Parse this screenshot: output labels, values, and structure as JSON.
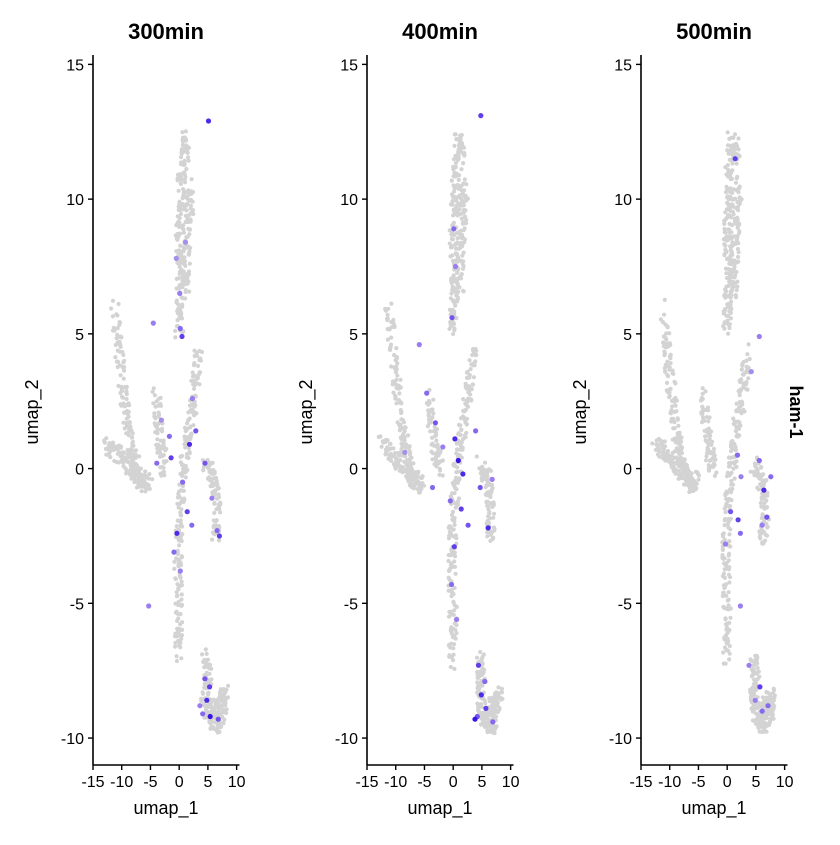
{
  "chart_data": {
    "type": "scatter",
    "feature": "ham-1",
    "colors": {
      "low": "#d3d3d3",
      "mid": "#9a7ef0",
      "high": "#3b14e6"
    },
    "panels": [
      {
        "title": "300min",
        "xlabel": "umap_1",
        "ylabel": "umap_2",
        "xlim": [
          -15,
          10.5
        ],
        "ylim": [
          -11,
          15.2
        ],
        "xticks": [
          "-15",
          "-10",
          "-5",
          "0",
          "5",
          "10"
        ],
        "yticks": [
          "-10",
          "-5",
          "0",
          "5",
          "10",
          "15"
        ],
        "points": [
          [
            5.1,
            12.9,
            0.9
          ],
          [
            -4.5,
            5.4,
            0.5
          ],
          [
            -3.1,
            1.8,
            0.4
          ],
          [
            -1.7,
            1.2,
            0.6
          ],
          [
            -1.4,
            0.4,
            0.8
          ],
          [
            -0.5,
            7.8,
            0.4
          ],
          [
            0.1,
            6.5,
            0.5
          ],
          [
            0.2,
            5.2,
            0.6
          ],
          [
            0.5,
            4.9,
            0.8
          ],
          [
            1.1,
            8.4,
            0.4
          ],
          [
            2.3,
            2.6,
            0.5
          ],
          [
            2.9,
            1.4,
            0.7
          ],
          [
            1.8,
            0.9,
            0.9
          ],
          [
            0.6,
            -0.5,
            0.6
          ],
          [
            1.4,
            -1.6,
            0.8
          ],
          [
            -0.4,
            -2.4,
            0.9
          ],
          [
            -0.9,
            -3.1,
            0.6
          ],
          [
            0.2,
            -3.8,
            0.5
          ],
          [
            2.2,
            -2.1,
            0.6
          ],
          [
            4.5,
            0.2,
            0.7
          ],
          [
            5.7,
            -1.1,
            0.5
          ],
          [
            6.6,
            -2.3,
            0.6
          ],
          [
            7.0,
            -2.5,
            0.8
          ],
          [
            -3.9,
            0.2,
            0.6
          ],
          [
            -5.3,
            -5.1,
            0.5
          ],
          [
            4.5,
            -7.8,
            0.7
          ],
          [
            4.8,
            -8.6,
            0.9
          ],
          [
            4.1,
            -9.1,
            0.6
          ],
          [
            5.4,
            -9.2,
            1.0
          ],
          [
            6.8,
            -9.3,
            0.7
          ],
          [
            3.6,
            -8.8,
            0.5
          ],
          [
            5.3,
            -8.1,
            0.8
          ]
        ]
      },
      {
        "title": "400min",
        "xlabel": "umap_1",
        "ylabel": "umap_2",
        "xlim": [
          -15,
          10.5
        ],
        "ylim": [
          -11,
          15.2
        ],
        "xticks": [
          "-15",
          "-10",
          "-5",
          "0",
          "5",
          "10"
        ],
        "yticks": [
          "-10",
          "-5",
          "0",
          "5",
          "10",
          "15"
        ],
        "points": [
          [
            4.8,
            13.1,
            0.8
          ],
          [
            0.1,
            8.9,
            0.6
          ],
          [
            0.4,
            7.5,
            0.5
          ],
          [
            -0.2,
            5.6,
            0.7
          ],
          [
            -5.9,
            4.6,
            0.5
          ],
          [
            -4.6,
            2.8,
            0.6
          ],
          [
            -3.1,
            1.7,
            0.7
          ],
          [
            -1.8,
            0.8,
            0.5
          ],
          [
            -3.6,
            -0.7,
            0.6
          ],
          [
            0.3,
            1.1,
            0.9
          ],
          [
            0.9,
            0.3,
            1.0
          ],
          [
            1.7,
            -0.2,
            0.9
          ],
          [
            1.4,
            -1.5,
            0.8
          ],
          [
            2.6,
            -2.1,
            0.7
          ],
          [
            -0.5,
            -1.2,
            0.6
          ],
          [
            0.2,
            -2.9,
            0.8
          ],
          [
            -0.3,
            -4.3,
            0.6
          ],
          [
            0.6,
            -5.6,
            0.5
          ],
          [
            3.9,
            1.4,
            0.6
          ],
          [
            4.7,
            -0.7,
            0.7
          ],
          [
            6.1,
            -2.2,
            0.9
          ],
          [
            6.8,
            -0.4,
            0.5
          ],
          [
            -8.4,
            0.6,
            0.4
          ],
          [
            4.4,
            -7.3,
            0.8
          ],
          [
            4.9,
            -8.4,
            0.9
          ],
          [
            4.2,
            -9.2,
            0.7
          ],
          [
            5.7,
            -8.9,
            0.8
          ],
          [
            6.9,
            -9.4,
            0.6
          ],
          [
            3.8,
            -9.3,
            1.0
          ],
          [
            5.5,
            -7.9,
            0.6
          ]
        ]
      },
      {
        "title": "500min",
        "xlabel": "umap_1",
        "ylabel": "umap_2",
        "xlim": [
          -15,
          10.5
        ],
        "ylim": [
          -11,
          15.2
        ],
        "xticks": [
          "-15",
          "-10",
          "-5",
          "0",
          "5",
          "10"
        ],
        "yticks": [
          "-10",
          "-5",
          "0",
          "5",
          "10",
          "15"
        ],
        "points": [
          [
            1.4,
            11.5,
            0.8
          ],
          [
            5.6,
            4.9,
            0.5
          ],
          [
            4.2,
            3.6,
            0.4
          ],
          [
            1.8,
            0.5,
            0.6
          ],
          [
            2.4,
            -0.3,
            0.5
          ],
          [
            0.6,
            -1.6,
            0.7
          ],
          [
            1.9,
            -1.9,
            0.8
          ],
          [
            2.3,
            -2.4,
            0.6
          ],
          [
            -0.3,
            -2.8,
            0.5
          ],
          [
            5.6,
            0.3,
            0.6
          ],
          [
            6.4,
            -0.8,
            0.9
          ],
          [
            6.9,
            -1.8,
            0.7
          ],
          [
            7.6,
            -0.3,
            0.6
          ],
          [
            6.1,
            -2.1,
            0.5
          ],
          [
            2.3,
            -5.1,
            0.5
          ],
          [
            5.7,
            -8.1,
            0.8
          ],
          [
            6.1,
            -9.0,
            0.6
          ],
          [
            4.9,
            -8.6,
            0.5
          ],
          [
            7.1,
            -8.8,
            0.6
          ],
          [
            3.8,
            -7.3,
            0.5
          ]
        ]
      }
    ]
  },
  "side_label": "ham-1"
}
